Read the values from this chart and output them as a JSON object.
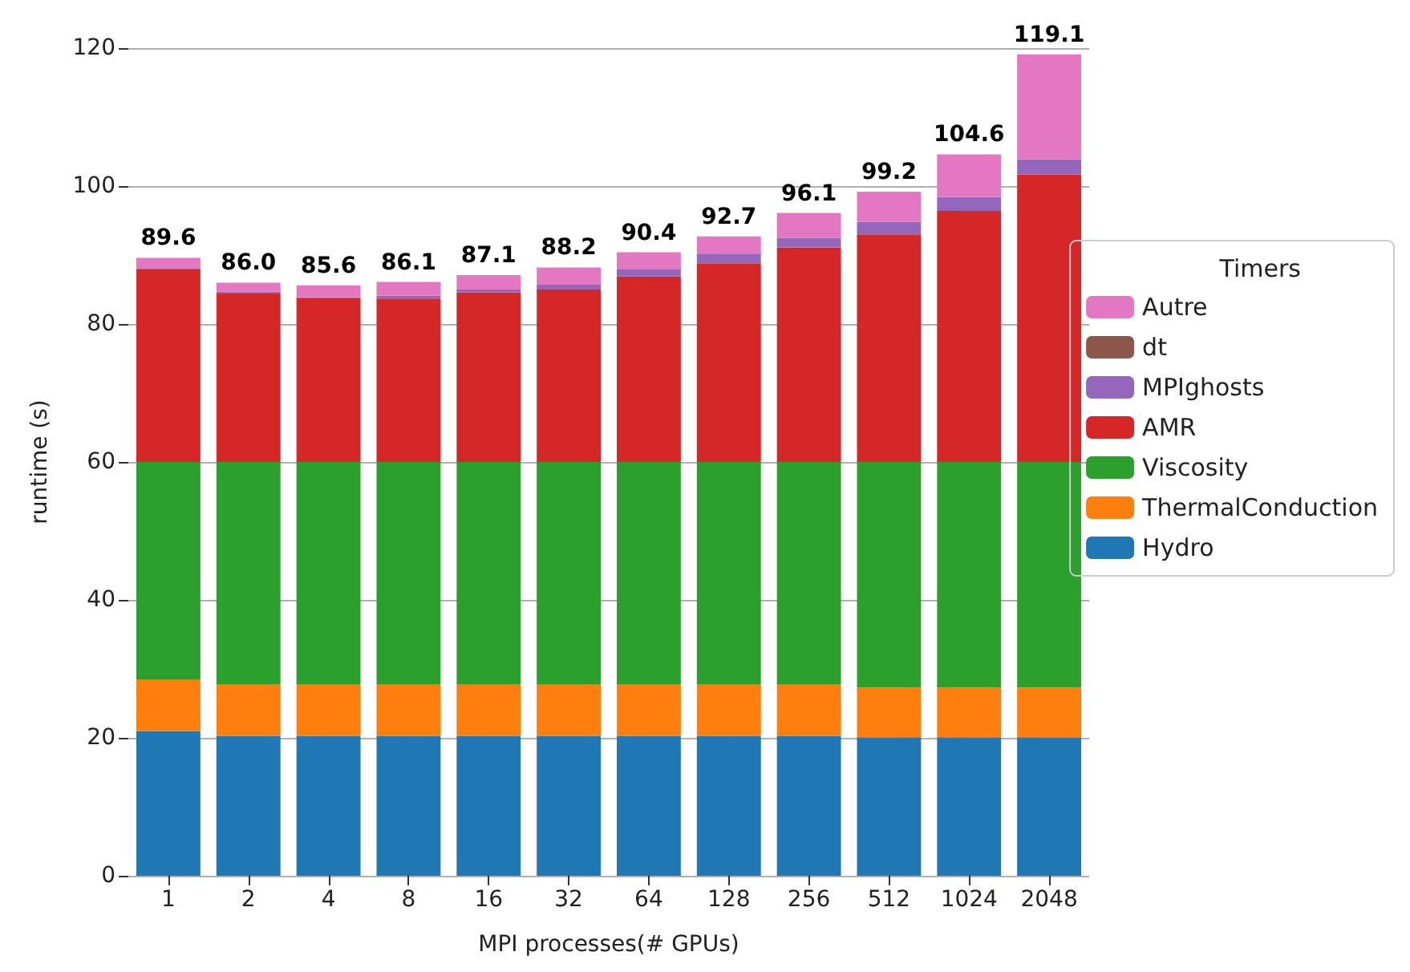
{
  "chart_data": {
    "type": "bar",
    "stacked": true,
    "xlabel": "MPI processes(# GPUs)",
    "ylabel": "runtime (s)",
    "legend_title": "Timers",
    "legend": "right",
    "grid": "y",
    "categories": [
      "1",
      "2",
      "4",
      "8",
      "16",
      "32",
      "64",
      "128",
      "256",
      "512",
      "1024",
      "2048"
    ],
    "ylim": [
      0,
      120
    ],
    "yticks": [
      0,
      20,
      40,
      60,
      80,
      100,
      120
    ],
    "series": [
      {
        "name": "Hydro",
        "color": "#1f77b4",
        "values": [
          21.0,
          20.3,
          20.3,
          20.3,
          20.3,
          20.3,
          20.3,
          20.3,
          20.3,
          20.1,
          20.1,
          20.1
        ]
      },
      {
        "name": "ThermalConduction",
        "color": "#ff7f0e",
        "values": [
          7.4,
          7.4,
          7.4,
          7.4,
          7.4,
          7.4,
          7.4,
          7.4,
          7.4,
          7.2,
          7.2,
          7.2
        ]
      },
      {
        "name": "Viscosity",
        "color": "#2ca02c",
        "values": [
          31.6,
          32.3,
          32.3,
          32.3,
          32.3,
          32.3,
          32.3,
          32.3,
          32.3,
          32.7,
          32.7,
          32.7
        ]
      },
      {
        "name": "AMR",
        "color": "#d62728",
        "values": [
          28.0,
          24.5,
          23.8,
          23.7,
          24.6,
          25.0,
          26.9,
          28.8,
          31.1,
          33.0,
          36.4,
          41.7
        ]
      },
      {
        "name": "MPIghosts",
        "color": "#9467bd",
        "values": [
          0.1,
          0.2,
          0.1,
          0.4,
          0.4,
          0.7,
          1.1,
          1.4,
          1.4,
          1.8,
          2.0,
          2.2
        ]
      },
      {
        "name": "dt",
        "color": "#8c564b",
        "values": [
          null,
          null,
          null,
          null,
          null,
          null,
          null,
          null,
          null,
          null,
          null,
          null
        ]
      },
      {
        "name": "Autre",
        "color": "#e377c2",
        "values": [
          1.5,
          1.3,
          1.7,
          2.0,
          2.1,
          2.5,
          2.4,
          2.5,
          3.6,
          4.4,
          6.2,
          15.2
        ]
      }
    ],
    "totals": [
      "89.6",
      "86.0",
      "85.6",
      "86.1",
      "87.1",
      "88.2",
      "90.4",
      "92.7",
      "96.1",
      "99.2",
      "104.6",
      "119.1"
    ]
  }
}
